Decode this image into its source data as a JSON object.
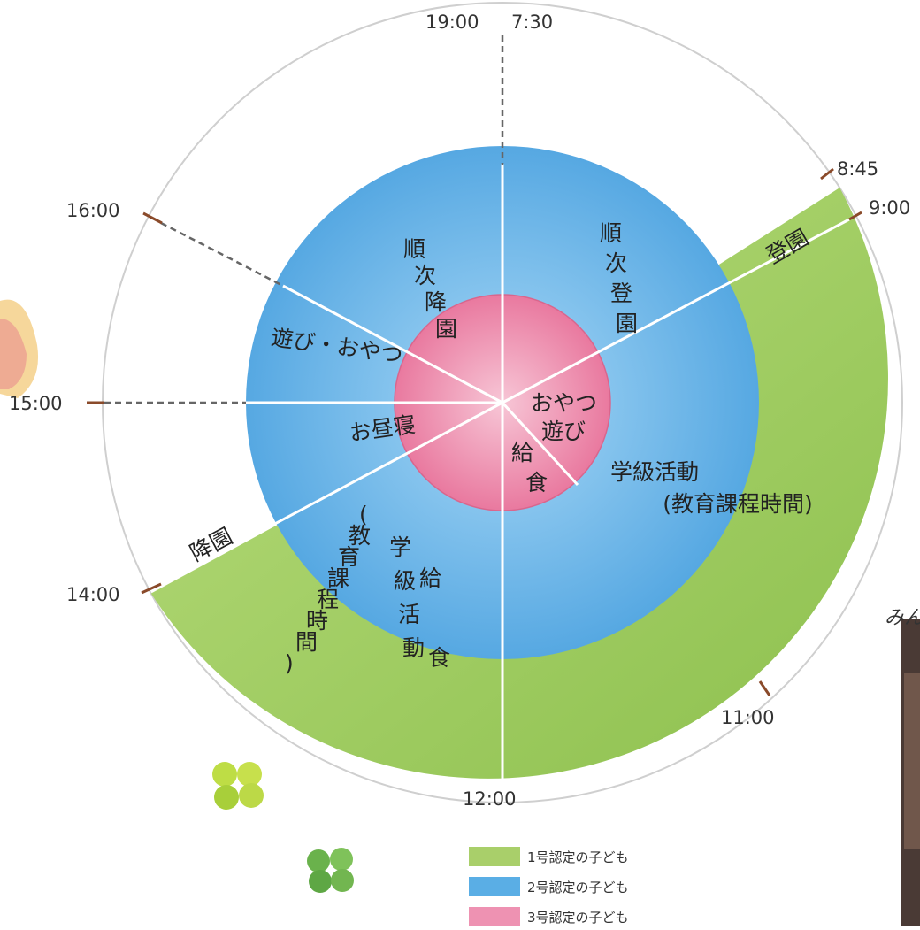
{
  "times": {
    "t1900": "19:00",
    "t0730": "7:30",
    "t0845": "8:45",
    "t0900": "9:00",
    "t1600": "16:00",
    "t1500": "15:00",
    "t1400": "14:00",
    "t1100": "11:00",
    "t1200": "12:00"
  },
  "outer_ring": {
    "touen": "登園",
    "kouen": "降園"
  },
  "blue_ring": {
    "junji_touen": "順次登園",
    "junji_kouen": "順次降園",
    "asobi_oyatsu": "遊び・おやつ",
    "ohirune": "お昼寝",
    "gakkyuu_katsudou": "学級活動",
    "kyouiku_katei": "(教育課程時間)",
    "left_col1": "(教育課程時間)",
    "left_col2": "学級活動",
    "left_col3": "給食"
  },
  "pink_center": {
    "oyatsu": "おやつ",
    "asobi": "遊び",
    "kyuushoku": "給食"
  },
  "legend": [
    {
      "label": "1号認定の子ども",
      "color": "#a9cf6a"
    },
    {
      "label": "2号認定の子ども",
      "color": "#5aaee5"
    },
    {
      "label": "3号認定の子ども",
      "color": "#ee92b2"
    }
  ],
  "partial_text": "みん",
  "colors": {
    "green": "#9ccb5c",
    "blue": "#66b4e8",
    "pink": "#ee8fb0",
    "tick": "#8a4a2a"
  }
}
